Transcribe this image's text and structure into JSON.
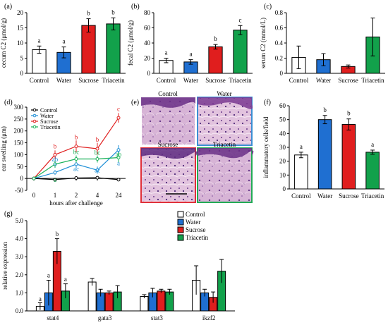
{
  "chart_data": [
    {
      "panel": "(a)",
      "type": "bar",
      "categories": [
        "Control",
        "Water",
        "Sucrose",
        "Triacetin"
      ],
      "values": [
        7.8,
        6.9,
        15.8,
        16.3
      ],
      "errors": [
        1.2,
        1.8,
        2.2,
        2.0
      ],
      "letters": [
        "a",
        "a",
        "b",
        "b"
      ],
      "colors": [
        "#ffffff",
        "#1f6fd1",
        "#e01e1e",
        "#12a14b"
      ],
      "ylabel": "cecum C2 (μmol/g)",
      "ylim": [
        0,
        20
      ],
      "yticks": [
        0,
        5,
        10,
        15,
        20
      ]
    },
    {
      "panel": "(b)",
      "type": "bar",
      "categories": [
        "Control",
        "Water",
        "Sucrose",
        "Triacetin"
      ],
      "values": [
        17,
        15,
        35,
        57
      ],
      "errors": [
        3,
        3,
        3,
        6
      ],
      "letters": [
        "a",
        "a",
        "b",
        "c"
      ],
      "colors": [
        "#ffffff",
        "#1f6fd1",
        "#e01e1e",
        "#12a14b"
      ],
      "ylabel": "fecal C2 (μmol/g)",
      "ylim": [
        0,
        80
      ],
      "yticks": [
        0,
        20,
        40,
        60,
        80
      ]
    },
    {
      "panel": "(c)",
      "type": "bar",
      "categories": [
        "Control",
        "Water",
        "Sucrose",
        "Triacetin"
      ],
      "values": [
        0.21,
        0.18,
        0.09,
        0.48
      ],
      "errors": [
        0.15,
        0.08,
        0.02,
        0.25
      ],
      "letters": [
        "",
        "",
        "",
        ""
      ],
      "colors": [
        "#ffffff",
        "#1f6fd1",
        "#e01e1e",
        "#12a14b"
      ],
      "ylabel": "serum C2 (mmol/L)",
      "ylim": [
        0,
        0.8
      ],
      "yticks": [
        "0",
        "0.2",
        "0.4",
        "0.6",
        "0.8"
      ]
    },
    {
      "panel": "(d)",
      "type": "line",
      "categories": [
        "0",
        "1",
        "2",
        "4",
        "24"
      ],
      "xlabel": "hours after challenge",
      "ylabel": "ear swelling (μm)",
      "ylim": [
        -50,
        300
      ],
      "yticks": [
        "-50",
        "0",
        "50",
        "100",
        "150",
        "200",
        "250",
        "300"
      ],
      "series": [
        {
          "name": "Control",
          "color": "#000000",
          "values": [
            0,
            -5,
            2,
            3,
            -5
          ],
          "errors": [
            3,
            3,
            4,
            4,
            5
          ]
        },
        {
          "name": "Water",
          "color": "#1f8fd6",
          "values": [
            0,
            25,
            60,
            35,
            120
          ],
          "errors": [
            3,
            10,
            15,
            15,
            20
          ]
        },
        {
          "name": "Sucrose",
          "color": "#e02020",
          "values": [
            0,
            100,
            135,
            125,
            255
          ],
          "errors": [
            5,
            18,
            25,
            25,
            20
          ]
        },
        {
          "name": "Triacetin",
          "color": "#17b057",
          "values": [
            0,
            60,
            82,
            82,
            88
          ],
          "errors": [
            5,
            15,
            15,
            15,
            20
          ]
        }
      ],
      "letter_labels": [
        {
          "t": "b",
          "x": 1,
          "y": 127,
          "c": "#e02020"
        },
        {
          "t": "ab",
          "x": 1,
          "y": 72,
          "c": "#1f8fd6"
        },
        {
          "t": "a",
          "x": 1,
          "y": 52,
          "c": "#1f8fd6"
        },
        {
          "t": "a",
          "x": 1,
          "y": -15,
          "c": "#17b057"
        },
        {
          "t": "b",
          "x": 2,
          "y": 165,
          "c": "#e02020"
        },
        {
          "t": "bc",
          "x": 2,
          "y": 103,
          "c": "#17b057"
        },
        {
          "t": "ac",
          "x": 2,
          "y": 32,
          "c": "#1f8fd6"
        },
        {
          "t": "b",
          "x": 3,
          "y": 155,
          "c": "#e02020"
        },
        {
          "t": "bc",
          "x": 3,
          "y": 100,
          "c": "#17b057"
        },
        {
          "t": "ac",
          "x": 3,
          "y": 25,
          "c": "#1f8fd6"
        },
        {
          "t": "c",
          "x": 4,
          "y": 283,
          "c": "#e02020"
        },
        {
          "t": "ab",
          "x": 4,
          "y": 92,
          "c": "#17b057"
        },
        {
          "t": "a",
          "x": 4,
          "y": 55,
          "c": "#1f8fd6"
        }
      ],
      "legend": "top-left"
    },
    {
      "panel": "(f)",
      "type": "bar",
      "categories": [
        "Control",
        "Water",
        "Sucrose",
        "Triacetin"
      ],
      "values": [
        24.5,
        50,
        46.5,
        26.5
      ],
      "errors": [
        2,
        3,
        4,
        1.5
      ],
      "letters": [
        "a",
        "b",
        "b",
        "a"
      ],
      "colors": [
        "#ffffff",
        "#1f6fd1",
        "#e01e1e",
        "#12a14b"
      ],
      "ylabel": "inflammatory cells/field",
      "ylim": [
        0,
        60
      ],
      "yticks": [
        0,
        10,
        20,
        30,
        40,
        50,
        60
      ]
    },
    {
      "panel": "(g)",
      "type": "bar",
      "categories": [
        "stat4",
        "gata3",
        "stat3",
        "ikzf2"
      ],
      "ylabel": "relative expression",
      "ylim": [
        0,
        5
      ],
      "yticks": [
        "0.0",
        "1.0",
        "2.0",
        "3.0",
        "4.0",
        "5.0"
      ],
      "series": [
        {
          "name": "Control",
          "color": "#ffffff",
          "values": [
            0.25,
            1.6,
            0.8,
            1.7
          ],
          "errors": [
            0.2,
            0.2,
            0.1,
            0.8
          ]
        },
        {
          "name": "Water",
          "color": "#1f6fd1",
          "values": [
            1.0,
            1.0,
            1.0,
            1.0
          ],
          "errors": [
            0.7,
            0.2,
            0.25,
            0.2
          ]
        },
        {
          "name": "Sucrose",
          "color": "#e01e1e",
          "values": [
            3.3,
            1.0,
            1.1,
            0.75
          ],
          "errors": [
            0.7,
            0.1,
            0.1,
            0.3
          ]
        },
        {
          "name": "Triacetin",
          "color": "#12a14b",
          "values": [
            1.1,
            1.05,
            1.05,
            2.2
          ],
          "errors": [
            0.4,
            0.35,
            0.15,
            0.65
          ]
        }
      ],
      "letters": [
        {
          "t": "a",
          "cat": 0,
          "s": 0,
          "y": 0.55
        },
        {
          "t": "a",
          "cat": 0,
          "s": 1,
          "y": 1.85
        },
        {
          "t": "b",
          "cat": 0,
          "s": 2,
          "y": 4.15
        },
        {
          "t": "a",
          "cat": 0,
          "s": 3,
          "y": 1.65
        }
      ],
      "legend": "top-center"
    }
  ],
  "micrograph": {
    "panel": "(e)",
    "labels": [
      "Control",
      "Water",
      "Sucrose",
      "Triacetin"
    ],
    "frame_colors": [
      "#ffffff",
      "#3b8fd4",
      "#e0303a",
      "#22aa55"
    ]
  }
}
